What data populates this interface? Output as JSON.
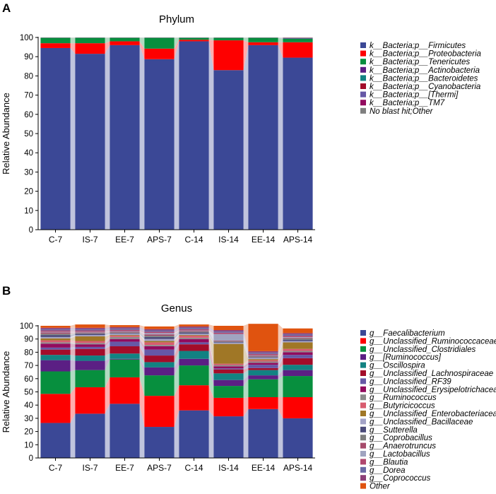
{
  "figure": {
    "panel_a_label": "A",
    "panel_b_label": "B"
  },
  "chart_data": [
    {
      "type": "stacked-bar",
      "title": "Phylum",
      "xlabel": "",
      "ylabel": "Relative Abundance",
      "ylim": [
        0,
        100
      ],
      "yticks": [
        0,
        10,
        20,
        30,
        40,
        50,
        60,
        70,
        80,
        90,
        100
      ],
      "categories": [
        "C-7",
        "IS-7",
        "EE-7",
        "APS-7",
        "C-14",
        "IS-14",
        "EE-14",
        "APS-14"
      ],
      "legend_position": "right",
      "series": [
        {
          "name": "k__Bacteria;p__Firmicutes",
          "color": "#3b4896",
          "values": [
            94.5,
            91.5,
            96.0,
            88.7,
            98.0,
            83.0,
            96.0,
            89.5
          ]
        },
        {
          "name": "k__Bacteria;p__Proteobacteria",
          "color": "#fe0000",
          "values": [
            2.5,
            5.5,
            2.0,
            5.5,
            0.8,
            15.5,
            1.5,
            8.0
          ]
        },
        {
          "name": "k__Bacteria;p__Tenericutes",
          "color": "#078f3e",
          "values": [
            2.8,
            2.8,
            1.8,
            5.6,
            1.0,
            1.3,
            2.3,
            1.8
          ]
        },
        {
          "name": "k__Bacteria;p__Actinobacteria",
          "color": "#5b1f84",
          "values": [
            0.05,
            0.05,
            0.05,
            0.05,
            0.05,
            0.05,
            0.05,
            0.2
          ]
        },
        {
          "name": "k__Bacteria;p__Bacteroidetes",
          "color": "#128282",
          "values": [
            0.05,
            0.05,
            0.05,
            0.05,
            0.05,
            0.05,
            0.05,
            0.2
          ]
        },
        {
          "name": "k__Bacteria;p__Cyanobacteria",
          "color": "#a30c2a",
          "values": [
            0.05,
            0.05,
            0.05,
            0.05,
            0.05,
            0.05,
            0.05,
            0.1
          ]
        },
        {
          "name": "k__Bacteria;p__[Thermi]",
          "color": "#6658a6",
          "values": [
            0.02,
            0.02,
            0.02,
            0.02,
            0.02,
            0.02,
            0.02,
            0.05
          ]
        },
        {
          "name": "k__Bacteria;p__TM7",
          "color": "#920b5e",
          "values": [
            0.02,
            0.02,
            0.02,
            0.02,
            0.02,
            0.02,
            0.02,
            0.05
          ]
        },
        {
          "name": "No blast hit;Other",
          "color": "#7f7f7f",
          "values": [
            0.01,
            0.01,
            0.01,
            0.01,
            0.01,
            0.01,
            0.01,
            0.1
          ]
        }
      ]
    },
    {
      "type": "stacked-bar",
      "title": "Genus",
      "xlabel": "",
      "ylabel": "Relative Abundance",
      "ylim": [
        0,
        100
      ],
      "yticks": [
        0,
        10,
        20,
        30,
        40,
        50,
        60,
        70,
        80,
        90,
        100
      ],
      "categories": [
        "C-7",
        "IS-7",
        "EE-7",
        "APS-7",
        "C-14",
        "IS-14",
        "EE-14",
        "APS-14"
      ],
      "legend_position": "right",
      "series": [
        {
          "name": "g__Faecalibacterium",
          "color": "#3b4896",
          "values": [
            26.5,
            33.5,
            41.0,
            23.5,
            36.0,
            31.5,
            37.0,
            30.0
          ]
        },
        {
          "name": "g__Unclassified_Ruminococcaceae",
          "color": "#fe0000",
          "values": [
            22.0,
            20.0,
            20.0,
            23.5,
            19.0,
            14.0,
            9.0,
            16.0
          ]
        },
        {
          "name": "g__Unclassified_Clostridiales",
          "color": "#078f3e",
          "values": [
            17.0,
            13.0,
            13.5,
            15.5,
            15.0,
            9.0,
            13.5,
            16.0
          ]
        },
        {
          "name": "g__[Ruminococcus]",
          "color": "#5b1f84",
          "values": [
            8.5,
            7.0,
            0.5,
            6.0,
            5.0,
            4.5,
            3.0,
            4.5
          ]
        },
        {
          "name": "g__Oscillospira",
          "color": "#128282",
          "values": [
            4.0,
            4.0,
            4.0,
            4.0,
            6.0,
            5.0,
            4.0,
            4.0
          ]
        },
        {
          "name": "g__Unclassified_Lachnospiraceae",
          "color": "#a30c2a",
          "values": [
            4.0,
            5.0,
            5.5,
            5.0,
            5.0,
            3.0,
            1.5,
            5.0
          ]
        },
        {
          "name": "g__Unclassified_RF39",
          "color": "#6658a6",
          "values": [
            1.5,
            1.5,
            3.5,
            4.5,
            1.5,
            0.8,
            2.5,
            2.5
          ]
        },
        {
          "name": "g__Unclassified_Erysipelotrichaceae",
          "color": "#920b5e",
          "values": [
            3.0,
            2.0,
            2.0,
            2.5,
            2.5,
            1.5,
            1.5,
            2.0
          ]
        },
        {
          "name": "g__Ruminococcus",
          "color": "#8c8c8c",
          "values": [
            1.0,
            1.0,
            1.5,
            1.0,
            1.0,
            1.0,
            1.0,
            1.0
          ]
        },
        {
          "name": "g__Butyricicoccus",
          "color": "#d85c6f",
          "values": [
            1.5,
            1.5,
            1.0,
            2.0,
            1.5,
            1.0,
            1.0,
            1.5
          ]
        },
        {
          "name": "g__Unclassified_Enterobacteriaceae",
          "color": "#a07726",
          "values": [
            1.5,
            3.5,
            0.5,
            1.0,
            0.5,
            15.0,
            0.8,
            5.0
          ]
        },
        {
          "name": "g__Unclassified_Bacillaceae",
          "color": "#a3a3c7",
          "values": [
            1.0,
            1.0,
            1.0,
            1.5,
            1.0,
            1.0,
            1.0,
            1.0
          ]
        },
        {
          "name": "g__Sutterella",
          "color": "#4b4b7a",
          "values": [
            1.5,
            1.0,
            0.5,
            1.5,
            1.0,
            0.5,
            0.5,
            1.0
          ]
        },
        {
          "name": "g__Coprobacillus",
          "color": "#7f7f7f",
          "values": [
            1.0,
            0.5,
            0.5,
            1.0,
            0.5,
            0.5,
            0.5,
            1.0
          ]
        },
        {
          "name": "g__Anaerotruncus",
          "color": "#a64b6b",
          "values": [
            1.0,
            0.5,
            0.5,
            1.0,
            0.5,
            0.5,
            0.5,
            0.5
          ]
        },
        {
          "name": "g__Lactobacillus",
          "color": "#a0a4c0",
          "values": [
            0.5,
            0.5,
            0.5,
            1.0,
            0.5,
            5.0,
            0.5,
            0.5
          ]
        },
        {
          "name": "g__Blautia",
          "color": "#b0476f",
          "values": [
            1.0,
            1.0,
            1.0,
            1.0,
            1.0,
            1.0,
            1.0,
            1.0
          ]
        },
        {
          "name": "g__Dorea",
          "color": "#6a6aa6",
          "values": [
            1.0,
            1.0,
            1.0,
            1.0,
            1.0,
            1.0,
            1.0,
            1.0
          ]
        },
        {
          "name": "g__Coprococcus",
          "color": "#8c3f78",
          "values": [
            1.0,
            1.0,
            1.0,
            1.0,
            1.0,
            1.0,
            1.0,
            1.0
          ]
        },
        {
          "name": "Other",
          "color": "#e0530f",
          "values": [
            1.5,
            2.5,
            1.5,
            2.0,
            1.5,
            3.2,
            20.7,
            3.5
          ]
        }
      ]
    }
  ]
}
